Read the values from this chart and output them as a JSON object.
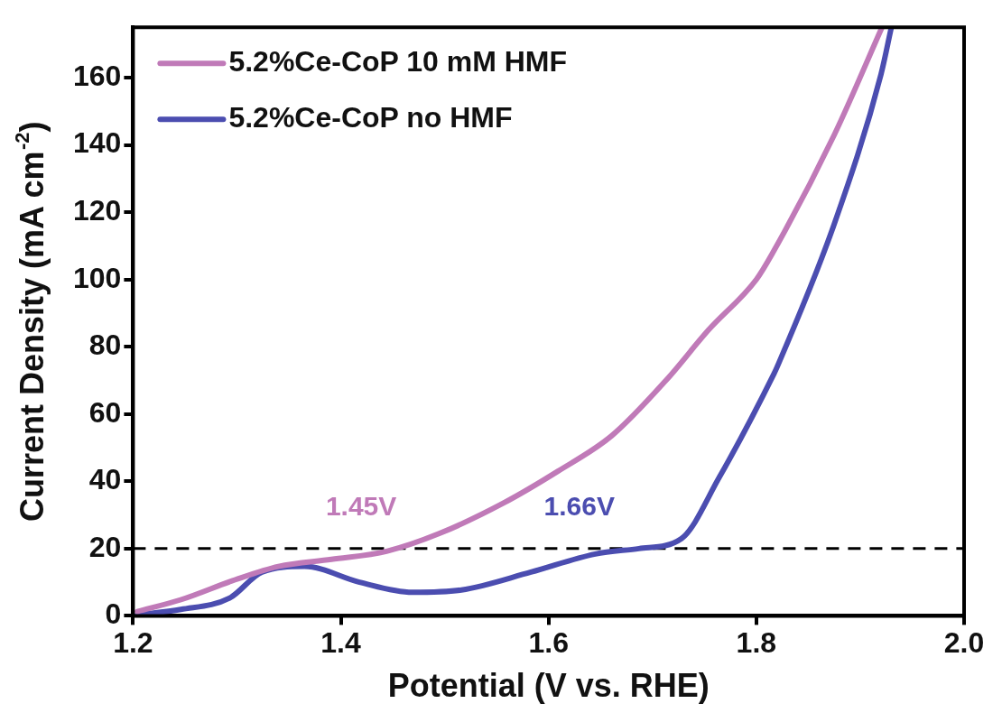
{
  "chart_data": {
    "type": "line",
    "xlabel": "Potential (V vs. RHE)",
    "ylabel": "Current Density (mA cm$^{-2}$)",
    "xlim": [
      1.2,
      2.0
    ],
    "xticks": [
      {
        "value": 1.2,
        "label": "1.2"
      },
      {
        "value": 1.4,
        "label": "1.4"
      },
      {
        "value": 1.6,
        "label": "1.6"
      },
      {
        "value": 1.8,
        "label": "1.8"
      },
      {
        "value": 2,
        "label": "2.0"
      }
    ],
    "ylim": [
      0,
      175
    ],
    "yticks": [
      0,
      20,
      40,
      60,
      80,
      100,
      120,
      140,
      160
    ],
    "grid": false,
    "legend": "top left",
    "marker": "none",
    "line_style": "solid",
    "series": [
      {
        "name": "5.2%Ce-CoP 10 mM HMF",
        "color": "#c07ab8",
        "x": [
          1.204,
          1.246,
          1.298,
          1.34,
          1.391,
          1.444,
          1.495,
          1.557,
          1.609,
          1.661,
          1.713,
          1.754,
          1.8,
          1.815,
          1.875,
          1.921
        ],
        "values": [
          1.3,
          4.8,
          10.7,
          14.7,
          16.8,
          19.2,
          24.5,
          33.6,
          43,
          53.6,
          70,
          85,
          100,
          107.5,
          143,
          175
        ]
      },
      {
        "name": "5.2%Ce-CoP no HMF",
        "color": "#4b4db0",
        "x": [
          1.204,
          1.246,
          1.293,
          1.324,
          1.365,
          1.418,
          1.469,
          1.516,
          1.583,
          1.645,
          1.687,
          1.728,
          1.764,
          1.817,
          1.82,
          1.875,
          1.92,
          1.93
        ],
        "values": [
          0.3,
          1.9,
          5.3,
          13,
          14.7,
          10,
          7,
          7.7,
          13,
          18.4,
          20,
          23,
          41,
          72,
          74,
          116.5,
          161,
          175
        ]
      }
    ],
    "ref_lines": [
      {
        "axis": "y",
        "value": 20,
        "color": "#000000",
        "line_style": "dashed"
      }
    ],
    "annotations": [
      {
        "text": "1.45V",
        "x": 1.45,
        "y": 20
      },
      {
        "text": "1.66V",
        "x": 1.66,
        "y": 20
      }
    ]
  }
}
